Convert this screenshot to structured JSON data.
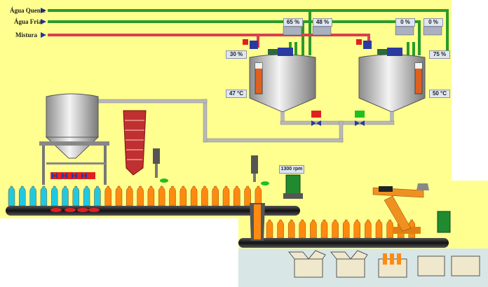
{
  "supply_lines": [
    {
      "label": "Água Quente",
      "color": "#2a9a2a"
    },
    {
      "label": "Água Fria",
      "color": "#2a9a2a"
    },
    {
      "label": "Mistura",
      "color": "#d84050"
    }
  ],
  "tank_left": {
    "hot_valve": "65 %",
    "cold_valve": "48 %",
    "mix_valve": "30 %",
    "temperature": "47 °C"
  },
  "tank_right": {
    "hot_valve": "0 %",
    "cold_valve": "0 %",
    "mix_valve": "75 %",
    "temperature": "50 °C"
  },
  "conveyor_motor": {
    "speed": "1300 rpm"
  },
  "colors": {
    "panel_bg": "#ffff90",
    "pipe_green": "#2a9a2a",
    "pipe_red": "#d84050",
    "pipe_gray": "#b8b8b8",
    "bottle_cyan": "#22c8e0",
    "bottle_orange": "#ff8a10",
    "readout_bg": "#dfe6f2",
    "floor": "#d8e6e6"
  }
}
